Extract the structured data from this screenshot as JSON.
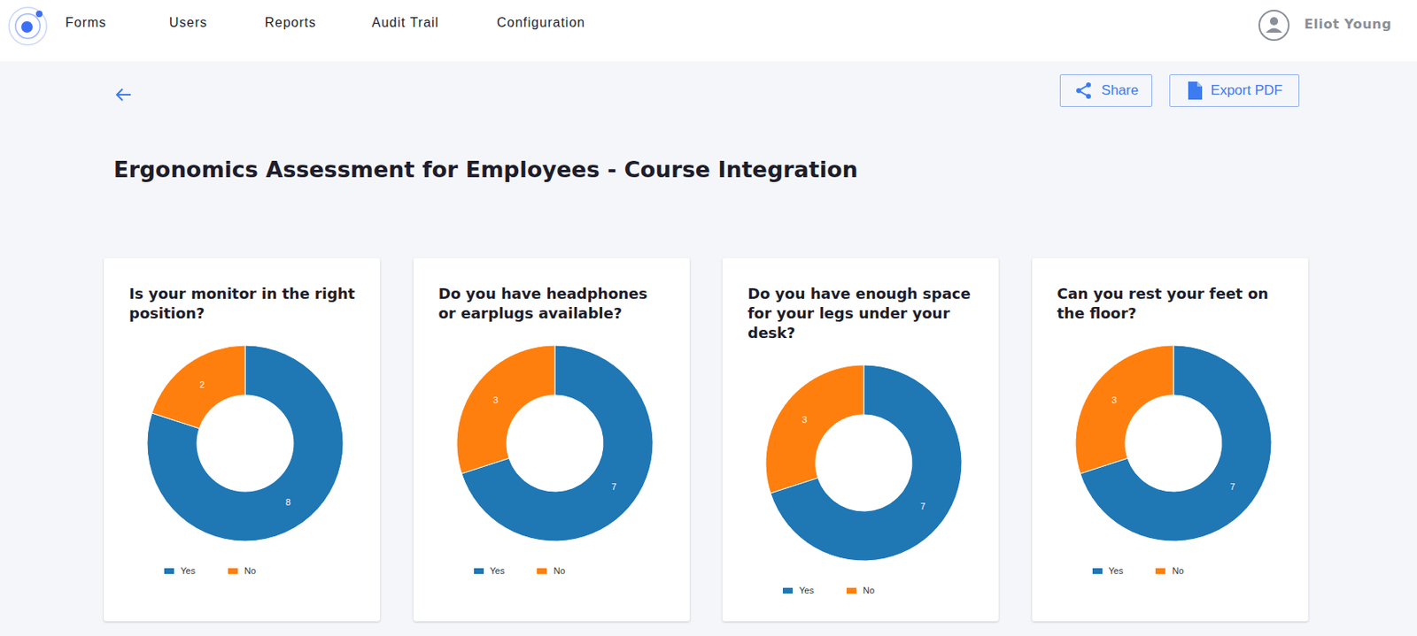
{
  "nav": {
    "items": [
      "Forms",
      "Users",
      "Reports",
      "Audit Trail",
      "Configuration"
    ],
    "user": "Eliot Young"
  },
  "actions": [
    "Share",
    "Export PDF"
  ],
  "title": "Ergonomics Assessment for Employees - Course Integration",
  "chart_data": [
    {
      "type": "pie",
      "title": "Is your monitor in the right position?",
      "categories": [
        "Yes",
        "No"
      ],
      "values": [
        8,
        2
      ],
      "colors": [
        "#1f77b4",
        "#ff7f0e"
      ],
      "data_labels": true,
      "legend": "bottom"
    },
    {
      "type": "pie",
      "title": "Do you have headphones or earplugs available?",
      "categories": [
        "Yes",
        "No"
      ],
      "values": [
        7,
        3
      ],
      "colors": [
        "#1f77b4",
        "#ff7f0e"
      ],
      "data_labels": true,
      "legend": "bottom"
    },
    {
      "type": "pie",
      "title": "Do you have enough space for your legs under your desk?",
      "categories": [
        "Yes",
        "No"
      ],
      "values": [
        7,
        3
      ],
      "colors": [
        "#1f77b4",
        "#ff7f0e"
      ],
      "data_labels": true,
      "legend": "bottom"
    },
    {
      "type": "pie",
      "title": "Can you rest your feet on the floor?",
      "categories": [
        "Yes",
        "No"
      ],
      "values": [
        7,
        3
      ],
      "colors": [
        "#1f77b4",
        "#ff7f0e"
      ],
      "data_labels": true,
      "legend": "bottom"
    }
  ]
}
